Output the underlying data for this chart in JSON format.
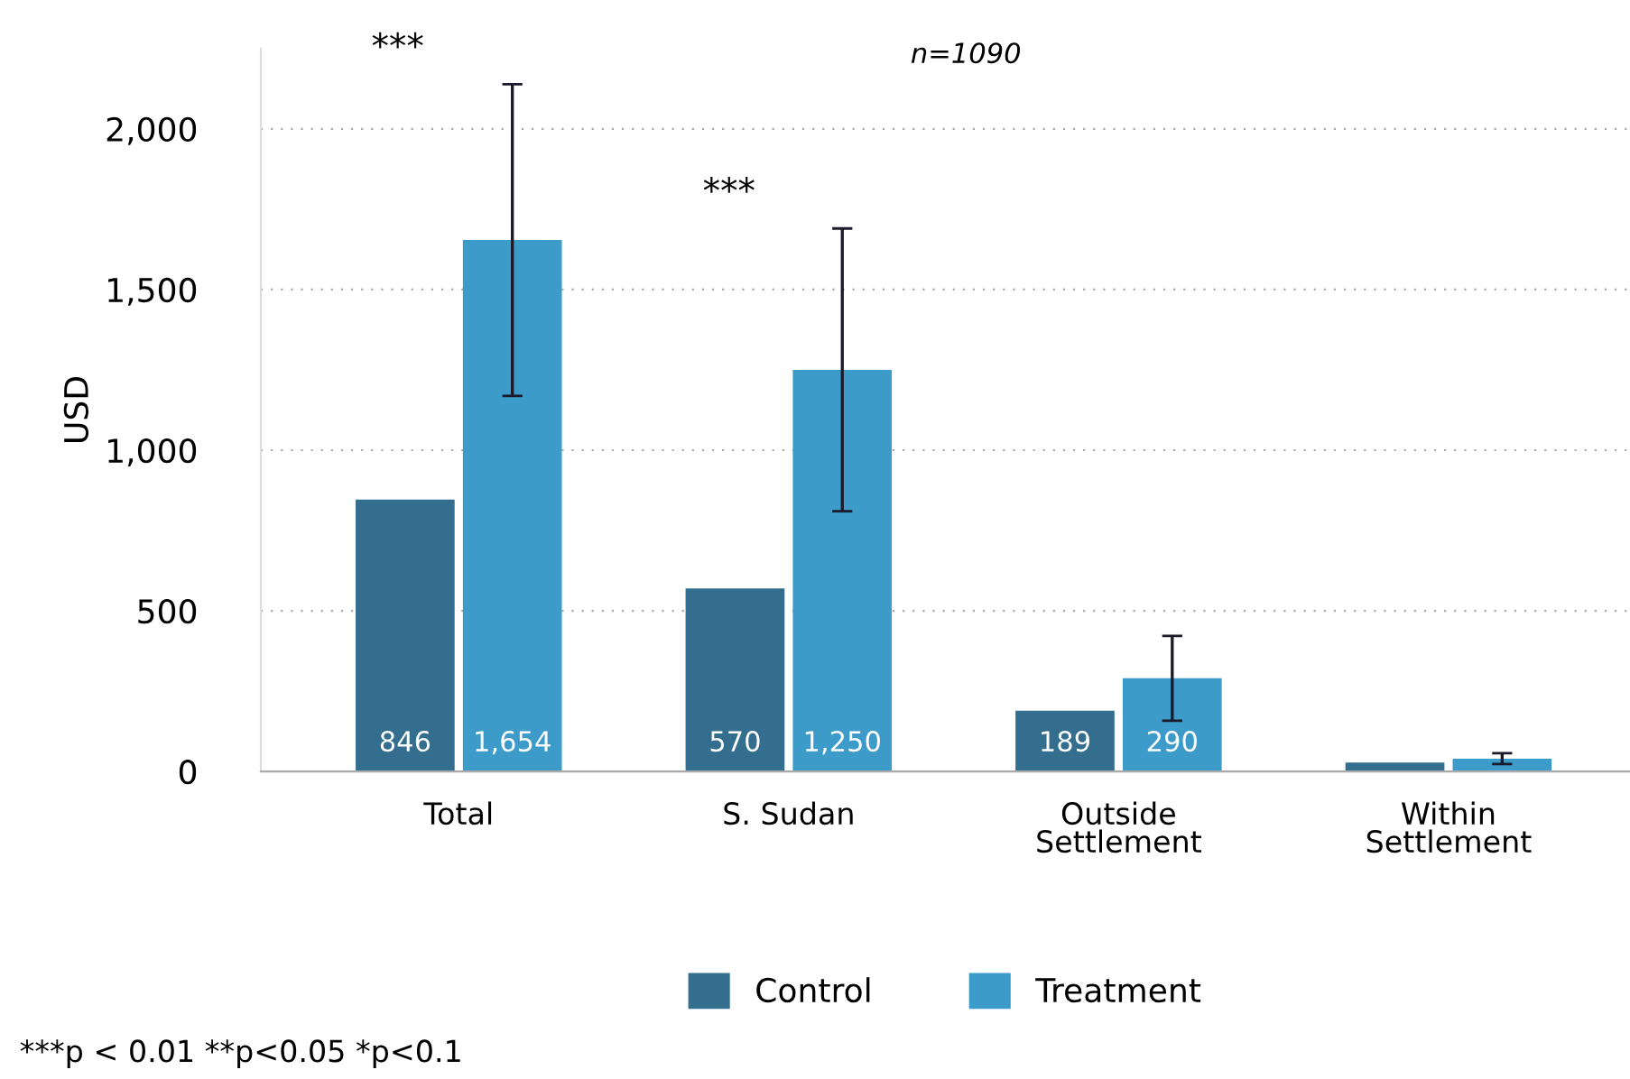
{
  "chart_data": {
    "type": "bar",
    "ylabel": "USD",
    "categories": [
      "Total",
      "S. Sudan",
      "Outside\nSettlement",
      "Within\nSettlement"
    ],
    "series": [
      {
        "name": "Control",
        "color": "#336e8e",
        "values": [
          846,
          570,
          189,
          28
        ],
        "value_labels": [
          "846",
          "570",
          "189",
          null
        ]
      },
      {
        "name": "Treatment",
        "color": "#3d9bc9",
        "values": [
          1654,
          1250,
          290,
          40
        ],
        "value_labels": [
          "1,654",
          "1,250",
          "290",
          null
        ],
        "errors": [
          485,
          440,
          132,
          17
        ]
      }
    ],
    "ylim": [
      0,
      2250
    ],
    "yticks": [
      0,
      500,
      {
        "value": 1000,
        "label": "1,000"
      },
      {
        "value": 1500,
        "label": "1,500"
      },
      {
        "value": 2000,
        "label": "2,000"
      }
    ],
    "grid": "y",
    "legend": "bottom",
    "annotations": [
      "***",
      "***",
      "n=1090",
      "***p < 0.01 **p<0.05 *p<0.1"
    ]
  }
}
